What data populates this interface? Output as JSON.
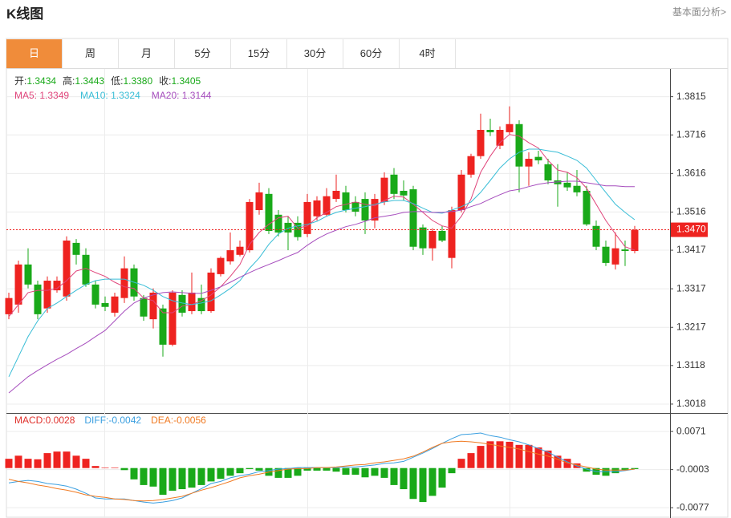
{
  "header": {
    "title": "K线图",
    "link": "基本面分析>"
  },
  "tabs": [
    "日",
    "周",
    "月",
    "5分",
    "15分",
    "30分",
    "60分",
    "4时"
  ],
  "active_tab": 0,
  "chart_data": [
    {
      "type": "candlestick",
      "info": [
        {
          "label": "开:",
          "value": "1.3434"
        },
        {
          "label": "高:",
          "value": "1.3443"
        },
        {
          "label": "低:",
          "value": "1.3380"
        },
        {
          "label": "收:",
          "value": "1.3405"
        }
      ],
      "ylim": [
        1.2995,
        1.3887
      ],
      "yticks": [
        1.3018,
        1.3118,
        1.3217,
        1.3317,
        1.3417,
        1.3516,
        1.3616,
        1.3716,
        1.3815
      ],
      "grid": true,
      "up_color": "#ee2320",
      "down_color": "#19a919",
      "open": [
        1.3251,
        1.3276,
        1.338,
        1.3328,
        1.3266,
        1.3313,
        1.3297,
        1.3436,
        1.3405,
        1.3328,
        1.328,
        1.3255,
        1.3293,
        1.337,
        1.3293,
        1.3238,
        1.3266,
        1.3172,
        1.3301,
        1.3259,
        1.3293,
        1.3259,
        1.3355,
        1.3388,
        1.3405,
        1.3417,
        1.3521,
        1.3563,
        1.3509,
        1.3488,
        1.3488,
        1.3459,
        1.3505,
        1.3509,
        1.355,
        1.3567,
        1.3542,
        1.355,
        1.3494,
        1.3542,
        1.3613,
        1.3571,
        1.3575,
        1.3476,
        1.3422,
        1.3467,
        1.3397,
        1.3521,
        1.3613,
        1.3661,
        1.3729,
        1.3688,
        1.3723,
        1.3744,
        1.3634,
        1.3659,
        1.364,
        1.3598,
        1.3592,
        1.3584,
        1.3571,
        1.348,
        1.3426,
        1.338,
        1.3419,
        1.3415
      ],
      "high": [
        1.3307,
        1.339,
        1.3422,
        1.3338,
        1.3349,
        1.3349,
        1.3453,
        1.3446,
        1.3422,
        1.3338,
        1.3297,
        1.3307,
        1.3401,
        1.338,
        1.3301,
        1.3318,
        1.3276,
        1.3313,
        1.3313,
        1.3359,
        1.3328,
        1.337,
        1.3401,
        1.3463,
        1.3442,
        1.355,
        1.3592,
        1.3578,
        1.3521,
        1.3505,
        1.3505,
        1.3563,
        1.3557,
        1.3578,
        1.3613,
        1.3584,
        1.3557,
        1.3567,
        1.3563,
        1.3619,
        1.363,
        1.3598,
        1.3584,
        1.3484,
        1.3474,
        1.348,
        1.353,
        1.3625,
        1.3667,
        1.3771,
        1.3758,
        1.3738,
        1.379,
        1.3754,
        1.3671,
        1.3675,
        1.3654,
        1.364,
        1.3619,
        1.3625,
        1.3584,
        1.3494,
        1.3442,
        1.3463,
        1.3442,
        1.348
      ],
      "low": [
        1.3238,
        1.3255,
        1.3318,
        1.3238,
        1.3255,
        1.3307,
        1.3286,
        1.338,
        1.3322,
        1.3266,
        1.3259,
        1.3245,
        1.328,
        1.3286,
        1.3234,
        1.3214,
        1.3141,
        1.3168,
        1.3245,
        1.3251,
        1.3251,
        1.3255,
        1.3349,
        1.338,
        1.3401,
        1.3411,
        1.3509,
        1.3459,
        1.3453,
        1.3417,
        1.3442,
        1.3451,
        1.3494,
        1.3505,
        1.3542,
        1.3515,
        1.3505,
        1.3459,
        1.3474,
        1.3534,
        1.355,
        1.3546,
        1.3417,
        1.3405,
        1.339,
        1.3438,
        1.337,
        1.3515,
        1.3605,
        1.3654,
        1.3713,
        1.3679,
        1.3717,
        1.3567,
        1.3584,
        1.364,
        1.3588,
        1.353,
        1.3571,
        1.3557,
        1.348,
        1.3417,
        1.3376,
        1.3367,
        1.3376,
        1.3409
      ],
      "close": [
        1.3293,
        1.338,
        1.3328,
        1.3251,
        1.3338,
        1.3338,
        1.3442,
        1.3405,
        1.3328,
        1.3276,
        1.327,
        1.3297,
        1.337,
        1.3297,
        1.3245,
        1.3307,
        1.3172,
        1.3307,
        1.3255,
        1.3307,
        1.3259,
        1.3359,
        1.3397,
        1.3417,
        1.3426,
        1.3542,
        1.3567,
        1.3467,
        1.3463,
        1.3463,
        1.3451,
        1.3542,
        1.3546,
        1.3557,
        1.3571,
        1.3521,
        1.3517,
        1.3494,
        1.355,
        1.3605,
        1.3563,
        1.3559,
        1.3426,
        1.3422,
        1.3467,
        1.3442,
        1.3521,
        1.3613,
        1.3661,
        1.3729,
        1.3723,
        1.3729,
        1.3744,
        1.3634,
        1.3654,
        1.365,
        1.3598,
        1.3588,
        1.358,
        1.3567,
        1.3484,
        1.3426,
        1.3384,
        1.3422,
        1.3415,
        1.347
      ],
      "lines": [
        {
          "legend": "MA5: 1.3349",
          "color": "#e0457b",
          "values": [
            1.3245,
            1.3276,
            1.3307,
            1.3313,
            1.3313,
            1.3318,
            1.3338,
            1.3363,
            1.337,
            1.3359,
            1.3349,
            1.3334,
            1.3322,
            1.3318,
            1.3293,
            1.3286,
            1.3255,
            1.3255,
            1.3272,
            1.3276,
            1.3286,
            1.3301,
            1.3322,
            1.3349,
            1.338,
            1.3432,
            1.3463,
            1.3484,
            1.3501,
            1.3505,
            1.3474,
            1.348,
            1.3501,
            1.3515,
            1.353,
            1.3536,
            1.3542,
            1.3536,
            1.3532,
            1.3546,
            1.3557,
            1.3555,
            1.3536,
            1.3515,
            1.3494,
            1.348,
            1.3474,
            1.3505,
            1.355,
            1.3619,
            1.3661,
            1.3696,
            1.3717,
            1.3713,
            1.3696,
            1.3682,
            1.365,
            1.3625,
            1.3619,
            1.3605,
            1.3578,
            1.3536,
            1.3494,
            1.3459,
            1.3426,
            1.3417
          ]
        },
        {
          "legend": "MA10: 1.3324",
          "color": "#38bdd6",
          "values": [
            1.3089,
            1.3141,
            1.3193,
            1.3234,
            1.3266,
            1.328,
            1.3297,
            1.3313,
            1.3328,
            1.3338,
            1.3342,
            1.3342,
            1.3342,
            1.3334,
            1.3326,
            1.3313,
            1.3297,
            1.3286,
            1.328,
            1.3276,
            1.328,
            1.3286,
            1.3301,
            1.3318,
            1.3338,
            1.337,
            1.3397,
            1.3432,
            1.3459,
            1.3474,
            1.348,
            1.3484,
            1.3492,
            1.3505,
            1.3515,
            1.3521,
            1.3526,
            1.353,
            1.3536,
            1.3542,
            1.3546,
            1.3546,
            1.3538,
            1.3526,
            1.3515,
            1.3513,
            1.3521,
            1.353,
            1.3542,
            1.3567,
            1.3598,
            1.363,
            1.3654,
            1.3671,
            1.3679,
            1.3679,
            1.3675,
            1.3671,
            1.3661,
            1.365,
            1.363,
            1.3598,
            1.3567,
            1.3536,
            1.3515,
            1.3496
          ]
        },
        {
          "legend": "MA20: 1.3144",
          "color": "#a64dbd",
          "values": [
            1.3047,
            1.3068,
            1.3089,
            1.3105,
            1.312,
            1.3134,
            1.3147,
            1.3162,
            1.3176,
            1.3193,
            1.3209,
            1.3234,
            1.3259,
            1.328,
            1.3293,
            1.3301,
            1.3307,
            1.3309,
            1.3307,
            1.3305,
            1.3305,
            1.3313,
            1.3322,
            1.3334,
            1.3347,
            1.3359,
            1.337,
            1.338,
            1.339,
            1.3401,
            1.3411,
            1.343,
            1.3446,
            1.3459,
            1.3469,
            1.3478,
            1.3484,
            1.3492,
            1.3501,
            1.3505,
            1.3509,
            1.3515,
            1.3517,
            1.3517,
            1.3515,
            1.3515,
            1.3517,
            1.3521,
            1.353,
            1.3538,
            1.355,
            1.3561,
            1.3571,
            1.3575,
            1.3582,
            1.3588,
            1.3592,
            1.3594,
            1.3596,
            1.3596,
            1.3592,
            1.3588,
            1.3584,
            1.3584,
            1.3582,
            1.3582
          ]
        }
      ],
      "last_price": {
        "value": 1.347,
        "label": "1.3470"
      },
      "last_price_color": "#ee2320"
    },
    {
      "type": "macd",
      "ylim": [
        -0.0097,
        0.0107
      ],
      "yticks": [
        -0.0077,
        -0.0003,
        0.0071
      ],
      "grid": true,
      "histogram_legend": "MACD:0.0028",
      "histogram_legend_color": "#e0312c",
      "up_color": "#ee2320",
      "down_color": "#19a919",
      "histogram": [
        0.0018,
        0.0024,
        0.0018,
        0.0017,
        0.0029,
        0.0032,
        0.0032,
        0.0024,
        0.0018,
        0.0004,
        0.0001,
        0.0001,
        -0.0004,
        -0.0022,
        -0.0033,
        -0.0036,
        -0.0052,
        -0.0044,
        -0.0041,
        -0.0038,
        -0.0033,
        -0.0026,
        -0.0021,
        -0.0015,
        -0.001,
        -0.0002,
        -0.0005,
        -0.0015,
        -0.0019,
        -0.0019,
        -0.0015,
        -0.0005,
        -0.0005,
        -0.0005,
        -0.0007,
        -0.0013,
        -0.0013,
        -0.0018,
        -0.0015,
        -0.0019,
        -0.0033,
        -0.0041,
        -0.006,
        -0.0066,
        -0.0054,
        -0.0038,
        -0.001,
        0.0018,
        0.0029,
        0.0043,
        0.0052,
        0.0052,
        0.0051,
        0.0045,
        0.0045,
        0.004,
        0.0034,
        0.0024,
        0.0018,
        0.0009,
        -0.0007,
        -0.0013,
        -0.0015,
        -0.001,
        -0.0004,
        -0.0002
      ],
      "series": [
        {
          "legend": "DIFF:-0.0042",
          "color": "#3a9fe0",
          "values": [
            -0.0029,
            -0.0026,
            -0.0024,
            -0.0026,
            -0.003,
            -0.0032,
            -0.0035,
            -0.0041,
            -0.0049,
            -0.0058,
            -0.006,
            -0.006,
            -0.006,
            -0.0063,
            -0.0066,
            -0.0068,
            -0.0066,
            -0.0063,
            -0.0058,
            -0.0049,
            -0.004,
            -0.003,
            -0.0026,
            -0.0019,
            -0.0015,
            -0.0012,
            -0.0007,
            -0.0005,
            -0.0002,
            -0.0001,
            0.0001,
            0.0001,
            0.0001,
            0.0001,
            0.0001,
            0.0002,
            0.0002,
            0.0004,
            0.0006,
            0.0009,
            0.001,
            0.0013,
            0.0021,
            0.0029,
            0.0038,
            0.0048,
            0.0057,
            0.0065,
            0.0066,
            0.0068,
            0.0063,
            0.006,
            0.0055,
            0.0051,
            0.0045,
            0.0038,
            0.0031,
            0.0021,
            0.0012,
            0.0004,
            -0.0002,
            -0.0007,
            -0.0007,
            -0.0007,
            -0.0005,
            -0.0002
          ]
        },
        {
          "legend": "DEA:-0.0056",
          "color": "#f07a22",
          "values": [
            -0.0022,
            -0.0026,
            -0.0029,
            -0.0033,
            -0.0036,
            -0.004,
            -0.0043,
            -0.0047,
            -0.0052,
            -0.0055,
            -0.0057,
            -0.006,
            -0.0061,
            -0.0063,
            -0.0064,
            -0.0063,
            -0.0061,
            -0.0058,
            -0.0055,
            -0.0049,
            -0.0043,
            -0.0038,
            -0.0032,
            -0.0026,
            -0.0019,
            -0.0015,
            -0.0012,
            -0.0008,
            -0.0005,
            -0.0002,
            -0.0001,
            -0.0001,
            0.0001,
            0.0001,
            0.0002,
            0.0004,
            0.0006,
            0.0007,
            0.001,
            0.0012,
            0.0015,
            0.0018,
            0.0023,
            0.0031,
            0.004,
            0.0048,
            0.0051,
            0.0052,
            0.0051,
            0.0049,
            0.0046,
            0.0043,
            0.004,
            0.0037,
            0.0032,
            0.0027,
            0.0023,
            0.0017,
            0.001,
            0.0006,
            0.0002,
            -0.0002,
            -0.0004,
            -0.0004,
            -0.0004,
            -0.0002
          ]
        }
      ]
    }
  ]
}
